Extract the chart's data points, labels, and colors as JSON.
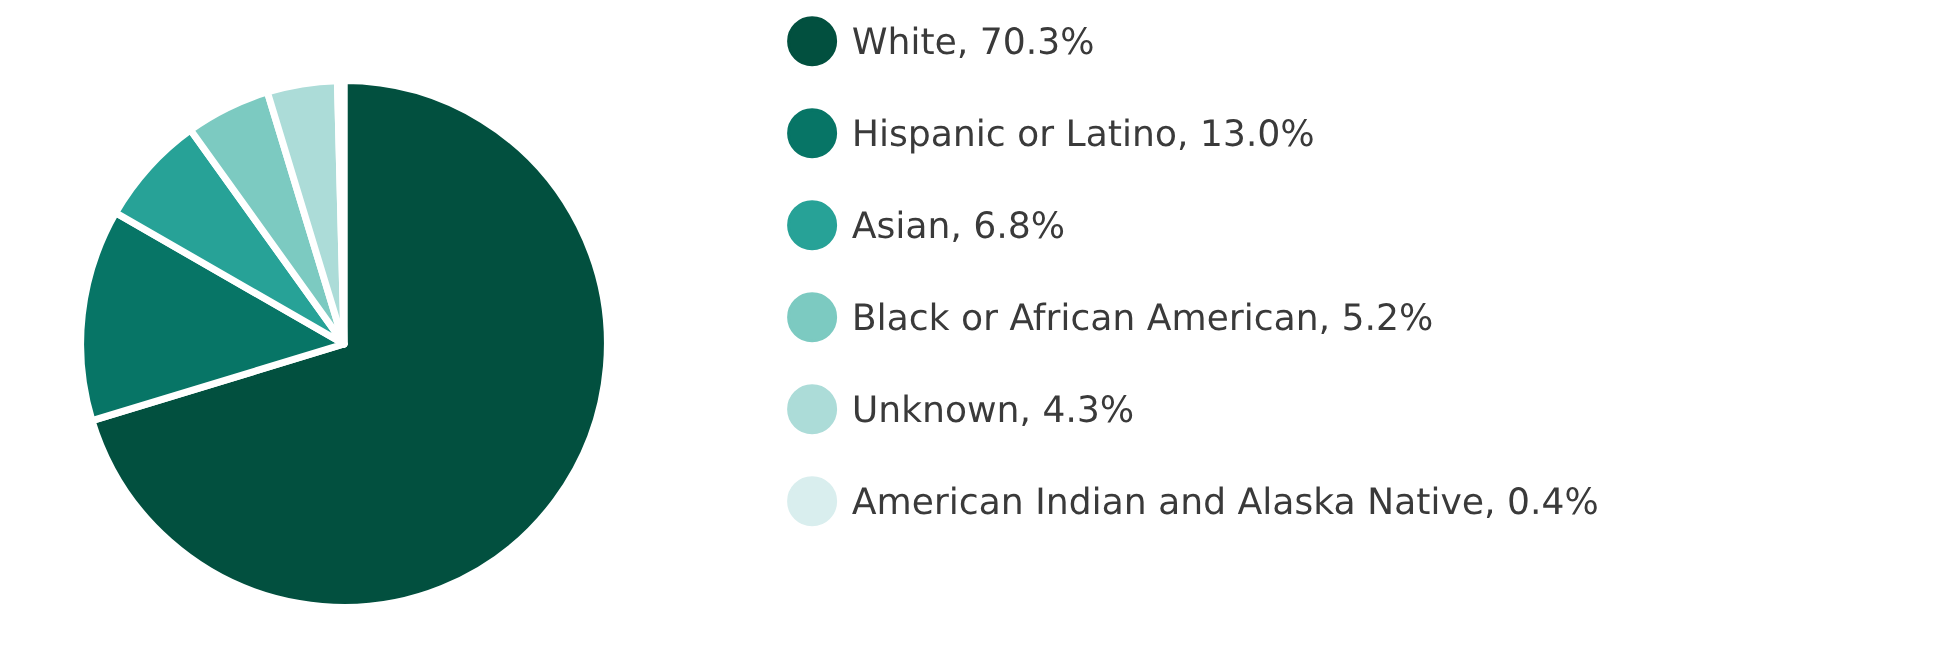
{
  "chart_data": {
    "type": "pie",
    "categories": [
      "White, 70.3%",
      "Hispanic or Latino, 13.0%",
      "Asian, 6.8%",
      "Black or African American, 5.2%",
      "Unknown, 4.3%",
      "American Indian and Alaska Native, 0.4%"
    ],
    "values": [
      70.3,
      13.0,
      6.8,
      5.2,
      4.3,
      0.4
    ],
    "colors": [
      "#02503f",
      "#077566",
      "#27a297",
      "#7ccac1",
      "#acdcd8",
      "#d9eeee"
    ],
    "legend": "right"
  }
}
